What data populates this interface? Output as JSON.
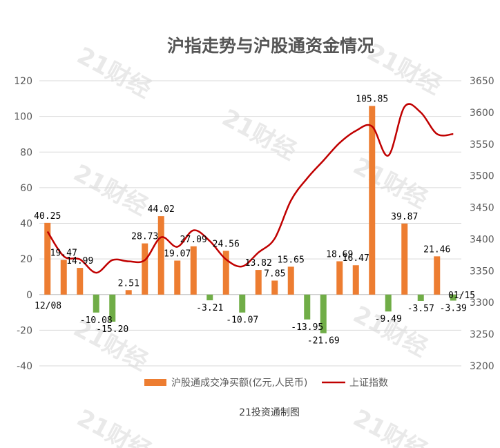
{
  "chart_data": {
    "type": "bar",
    "title": "沪指走势与沪股通资金情况",
    "footer": "21投资通制图",
    "watermark": "21财经",
    "x_start_label": "12/08",
    "x_end_label": "01/15",
    "ylim_left": [
      -40,
      120
    ],
    "yticks_left": [
      -40,
      -20,
      0,
      20,
      40,
      60,
      80,
      100,
      120
    ],
    "ylim_right": [
      3200,
      3650
    ],
    "yticks_right": [
      3200,
      3250,
      3300,
      3350,
      3400,
      3450,
      3500,
      3550,
      3600,
      3650
    ],
    "grid": true,
    "legend_position": "bottom",
    "bar_series": {
      "name": "沪股通成交净买额(亿元,人民币)",
      "color": "#ED7D31",
      "negative_color": "#70AD47",
      "values": [
        40.25,
        19.47,
        14.99,
        -10.08,
        -15.2,
        2.51,
        28.73,
        44.02,
        19.07,
        27.09,
        -3.21,
        24.56,
        -10.07,
        13.82,
        7.85,
        15.65,
        -13.95,
        -21.69,
        18.69,
        16.47,
        105.85,
        -9.49,
        39.87,
        -3.57,
        21.46,
        -3.39
      ],
      "labels": [
        "40.25",
        "19.47",
        "14.99",
        "-10.08",
        "-15.20",
        "2.51",
        "28.73",
        "44.02",
        "19.07",
        "27.09",
        "-3.21",
        "24.56",
        "-10.07",
        "13.82",
        "7.85",
        "15.65",
        "-13.95",
        "-21.69",
        "18.69",
        "16.47",
        "105.85",
        "-9.49",
        "39.87",
        "-3.57",
        "21.46",
        "-3.39"
      ]
    },
    "line_series": {
      "name": "上证指数",
      "color": "#C00000",
      "values": [
        3412,
        3373,
        3368,
        3347,
        3367,
        3365,
        3367,
        3403,
        3388,
        3414,
        3397,
        3368,
        3357,
        3379,
        3401,
        3461,
        3496,
        3524,
        3552,
        3571,
        3578,
        3532,
        3609,
        3600,
        3566,
        3566
      ]
    }
  }
}
